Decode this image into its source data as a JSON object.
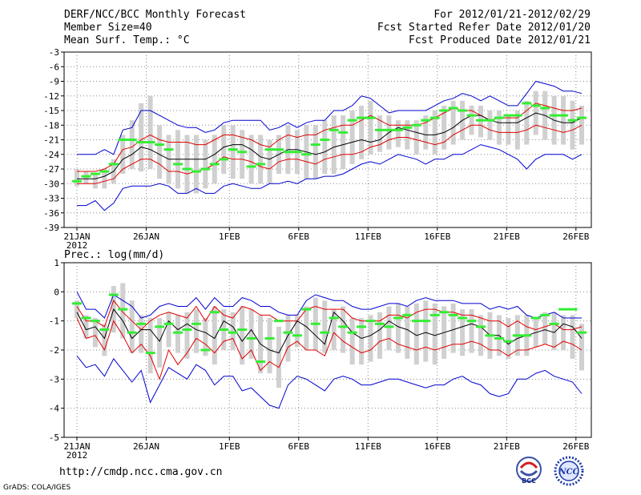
{
  "header": {
    "title": "DERF/NCC/BCC Monthly Forecast",
    "member_size": "Member Size=40",
    "variable": "Mean Surf. Temp.: °C",
    "period": "For 2012/01/21-2012/02/29",
    "fcst_started": "Fcst Started Refer Date 2012/01/20",
    "fcst_produced": "Fcst Produced Date 2012/01/21"
  },
  "footer": {
    "url": "http://cmdp.ncc.cma.gov.cn",
    "grads": "GrADS: COLA/IGES",
    "logo_bcc": "BCC",
    "logo_ncc": "NCC"
  },
  "colors": {
    "box": "#d0d0d0",
    "ensemble_mean": "#000000",
    "std_band": "#e00000",
    "envelope": "#0000d0",
    "member_mode": "#33ee33",
    "grid": "#888888"
  },
  "chart_data": [
    {
      "type": "line",
      "title": "Mean Surf. Temp.: °C",
      "xlabels": [
        "21JAN",
        "26JAN",
        "1FEB",
        "6FEB",
        "11FEB",
        "16FEB",
        "21FEB",
        "26FEB"
      ],
      "xlabel_year": "2012",
      "x_tick_days": [
        0,
        5,
        11,
        16,
        21,
        26,
        31,
        36
      ],
      "ylim": [
        -39,
        -3
      ],
      "yticks": [
        -3,
        -6,
        -9,
        -12,
        -15,
        -18,
        -21,
        -24,
        -27,
        -30,
        -33,
        -36,
        -39
      ],
      "ytick_labels": [
        "-3",
        "-6",
        "-9",
        "-12",
        "-15",
        "-18",
        "-21",
        "-24",
        "-27",
        "-30",
        "-33",
        "-36",
        "-39"
      ],
      "series": [
        {
          "name": "max",
          "values": [
            -24,
            -24,
            -24,
            -23,
            -24,
            -19,
            -18.5,
            -15,
            -15,
            -16,
            -17,
            -18,
            -18.5,
            -18.5,
            -19.5,
            -19,
            -17.5,
            -17,
            -17,
            -17,
            -17,
            -19,
            -18.5,
            -17.5,
            -18.5,
            -17.5,
            -17,
            -17,
            -15,
            -15,
            -14,
            -12,
            -12.5,
            -14,
            -15.5,
            -15,
            -15,
            -15,
            -15,
            -14,
            -13,
            -12.5,
            -11.5,
            -12,
            -13,
            -12,
            -13,
            -14,
            -14,
            -11.5,
            -9,
            -9.5,
            -10,
            -11,
            -11,
            -11.5
          ]
        },
        {
          "name": "mean_plus_std",
          "values": [
            -27.5,
            -27.5,
            -27.5,
            -27,
            -26,
            -23,
            -22.5,
            -21,
            -20,
            -21,
            -21.5,
            -21.5,
            -21.5,
            -22,
            -22,
            -21,
            -20,
            -20,
            -20.5,
            -21,
            -22,
            -22.5,
            -21,
            -20,
            -20.5,
            -20,
            -20,
            -19,
            -18.5,
            -18,
            -18,
            -17,
            -16,
            -17,
            -18,
            -18,
            -18,
            -18,
            -17.5,
            -16.5,
            -15.5,
            -14.5,
            -15,
            -15,
            -16,
            -17,
            -16.5,
            -16.5,
            -16.5,
            -15,
            -13.5,
            -14,
            -14.5,
            -15,
            -15,
            -14.5
          ]
        },
        {
          "name": "mean",
          "values": [
            -29,
            -29,
            -29,
            -28.5,
            -27.5,
            -25,
            -24,
            -22.5,
            -23,
            -24,
            -25,
            -25,
            -25,
            -25,
            -25,
            -24,
            -22.5,
            -22,
            -22,
            -23,
            -24.5,
            -25,
            -24,
            -23,
            -23,
            -23.5,
            -24,
            -23.5,
            -22.5,
            -22,
            -21.5,
            -21,
            -21.5,
            -21,
            -19.5,
            -18.5,
            -19,
            -19.5,
            -20,
            -20,
            -19.5,
            -18.5,
            -17,
            -16,
            -16,
            -17,
            -17.5,
            -17.5,
            -17.5,
            -16.5,
            -15.5,
            -16,
            -17,
            -17.5,
            -17.5,
            -16.5
          ]
        },
        {
          "name": "mean_minus_std",
          "values": [
            -30,
            -30,
            -30,
            -29.5,
            -29,
            -27,
            -26,
            -25,
            -25,
            -26,
            -27.5,
            -27.5,
            -28,
            -27.5,
            -27,
            -26,
            -24.5,
            -25,
            -25,
            -25.5,
            -26.5,
            -27,
            -25.5,
            -25,
            -25,
            -25.5,
            -26,
            -25,
            -24.5,
            -24,
            -24,
            -23.5,
            -22.5,
            -22,
            -21,
            -20.5,
            -20.5,
            -21,
            -21.5,
            -22,
            -21.5,
            -20,
            -19,
            -18,
            -18,
            -19,
            -19.5,
            -19.5,
            -19.5,
            -19,
            -18,
            -18.5,
            -19,
            -19.5,
            -19,
            -18
          ]
        },
        {
          "name": "min",
          "values": [
            -34.5,
            -34.5,
            -33.5,
            -35.5,
            -34,
            -31,
            -30.5,
            -30.5,
            -30.5,
            -30,
            -30.5,
            -32,
            -32,
            -31,
            -32,
            -32,
            -30.5,
            -30,
            -30.5,
            -31,
            -31,
            -30,
            -30,
            -29.5,
            -30,
            -29,
            -29,
            -28.5,
            -28.5,
            -28,
            -27,
            -26,
            -25.5,
            -26,
            -25,
            -24,
            -24.5,
            -25,
            -26,
            -25,
            -25,
            -24,
            -24,
            -23,
            -22,
            -22.5,
            -23,
            -24,
            -25,
            -27,
            -25,
            -24,
            -24,
            -24,
            -25,
            -24
          ]
        },
        {
          "name": "box_low",
          "values": [
            -30.5,
            -30,
            -31,
            -31,
            -30,
            -28,
            -27,
            -27.5,
            -27,
            -29,
            -30,
            -31,
            -32,
            -32,
            -31,
            -30,
            -28,
            -29,
            -29,
            -30,
            -30,
            -30,
            -28,
            -28,
            -28,
            -29,
            -29,
            -28,
            -28,
            -27,
            -26,
            -25,
            -24,
            -23.5,
            -23,
            -22.5,
            -23,
            -24,
            -23,
            -24,
            -23,
            -22,
            -21,
            -20,
            -20.5,
            -21,
            -22,
            -22,
            -23,
            -22,
            -20,
            -21,
            -22,
            -22,
            -23,
            -22
          ]
        },
        {
          "name": "box_high",
          "values": [
            -27,
            -27.5,
            -28,
            -27,
            -25,
            -20,
            -17,
            -13.5,
            -12,
            -18,
            -20,
            -19,
            -20,
            -20,
            -21,
            -20,
            -18,
            -18,
            -19,
            -20,
            -20,
            -21,
            -20,
            -18,
            -19,
            -18,
            -18,
            -17,
            -16,
            -16,
            -15,
            -14,
            -13,
            -16,
            -16,
            -17,
            -17,
            -17,
            -16,
            -15,
            -14,
            -13,
            -13,
            -14,
            -14,
            -15,
            -15,
            -16,
            -15,
            -13,
            -11,
            -11,
            -12,
            -12,
            -13,
            -14
          ]
        },
        {
          "name": "mode",
          "values": [
            -29.5,
            -28.5,
            -28,
            -27.5,
            -26,
            -21,
            -21,
            -21.5,
            -21.5,
            -22,
            -23,
            -26,
            -27,
            -27.5,
            -27,
            -26,
            -25,
            -23,
            -23.5,
            -26.5,
            -26,
            -23,
            -23,
            -23.5,
            -23.5,
            -24,
            -22,
            -21,
            -19,
            -19.5,
            -17,
            -16.5,
            -16.5,
            -19,
            -19,
            -19,
            -18.5,
            -18,
            -17,
            -16.5,
            -15,
            -14.5,
            -15,
            -16,
            -17,
            -17,
            -16.5,
            -16,
            -16,
            -13.5,
            -14,
            -14.5,
            -16,
            -16,
            -17,
            -16.5
          ]
        }
      ]
    },
    {
      "type": "line",
      "title": "Prec.: log(mm/d)",
      "xlabels": [
        "21JAN",
        "26JAN",
        "1FEB",
        "6FEB",
        "11FEB",
        "16FEB",
        "21FEB",
        "26FEB"
      ],
      "xlabel_year": "2012",
      "x_tick_days": [
        0,
        5,
        11,
        16,
        21,
        26,
        31,
        36
      ],
      "ylim": [
        -5,
        1
      ],
      "yticks": [
        1,
        0,
        -1,
        -2,
        -3,
        -4,
        -5
      ],
      "ytick_labels": [
        "1",
        "0",
        "-1",
        "-2",
        "-3",
        "-4",
        "-5"
      ],
      "series": [
        {
          "name": "max",
          "values": [
            0,
            -0.6,
            -0.6,
            -0.9,
            -0.1,
            -0.3,
            -0.5,
            -0.9,
            -0.8,
            -0.5,
            -0.4,
            -0.5,
            -0.5,
            -0.2,
            -0.6,
            -0.2,
            -0.5,
            -0.5,
            -0.2,
            -0.3,
            -0.5,
            -0.5,
            -0.7,
            -0.8,
            -0.8,
            -0.3,
            -0.1,
            -0.2,
            -0.3,
            -0.3,
            -0.5,
            -0.6,
            -0.6,
            -0.5,
            -0.4,
            -0.4,
            -0.5,
            -0.3,
            -0.2,
            -0.3,
            -0.3,
            -0.3,
            -0.4,
            -0.4,
            -0.4,
            -0.6,
            -0.5,
            -0.6,
            -0.5,
            -0.8,
            -0.9,
            -0.8,
            -0.7,
            -0.9,
            -0.9,
            -0.9
          ]
        },
        {
          "name": "mean_plus_std",
          "values": [
            -0.5,
            -1,
            -1,
            -1.2,
            -0.3,
            -0.7,
            -1,
            -1.3,
            -1,
            -0.8,
            -0.7,
            -0.8,
            -0.9,
            -0.5,
            -1,
            -0.5,
            -0.8,
            -0.9,
            -0.5,
            -0.6,
            -0.8,
            -0.8,
            -1,
            -1,
            -1,
            -0.6,
            -0.5,
            -0.6,
            -0.6,
            -0.6,
            -0.9,
            -1,
            -1,
            -1,
            -0.8,
            -0.8,
            -0.9,
            -0.7,
            -0.6,
            -0.6,
            -0.7,
            -0.7,
            -0.8,
            -0.8,
            -0.9,
            -1,
            -1,
            -1.2,
            -1,
            -1.2,
            -1.3,
            -1.2,
            -1.1,
            -1.3,
            -1.3,
            -1.2
          ]
        },
        {
          "name": "mean",
          "values": [
            -0.7,
            -1.3,
            -1.2,
            -1.6,
            -0.6,
            -1,
            -1.6,
            -1.3,
            -1.3,
            -1.7,
            -1,
            -1.3,
            -1.1,
            -1.3,
            -1.4,
            -1.6,
            -1,
            -1.2,
            -1.7,
            -1.3,
            -1.8,
            -2,
            -2.1,
            -1.5,
            -1,
            -1.2,
            -1.5,
            -1.8,
            -0.7,
            -1,
            -1.4,
            -1.6,
            -1.5,
            -1.3,
            -1,
            -1.2,
            -1.3,
            -1.5,
            -1.4,
            -1.5,
            -1.4,
            -1.3,
            -1.2,
            -1.1,
            -1.2,
            -1.5,
            -1.5,
            -1.8,
            -1.6,
            -1.5,
            -1.4,
            -1.3,
            -1.4,
            -1.1,
            -1.2,
            -1.6
          ]
        },
        {
          "name": "mean_minus_std",
          "values": [
            -0.9,
            -1.6,
            -1.5,
            -2,
            -1,
            -1.5,
            -2.1,
            -1.8,
            -2.2,
            -3,
            -2,
            -2.5,
            -2.1,
            -1.6,
            -1.8,
            -2.1,
            -1.7,
            -1.6,
            -2.3,
            -2,
            -2.7,
            -2.4,
            -2.6,
            -1.9,
            -1.7,
            -2,
            -2,
            -2.2,
            -1.4,
            -1.7,
            -1.9,
            -2.1,
            -2,
            -1.7,
            -1.6,
            -1.8,
            -1.9,
            -2,
            -1.9,
            -2,
            -1.9,
            -1.8,
            -1.8,
            -1.7,
            -1.8,
            -2,
            -2,
            -2.2,
            -2,
            -2,
            -1.9,
            -1.8,
            -1.9,
            -1.7,
            -1.8,
            -2
          ]
        },
        {
          "name": "min",
          "values": [
            -2.2,
            -2.6,
            -2.5,
            -2.9,
            -2.3,
            -2.7,
            -3.1,
            -2.7,
            -3.8,
            -3.2,
            -2.6,
            -2.8,
            -3,
            -2.5,
            -2.7,
            -3.2,
            -2.9,
            -2.9,
            -3.4,
            -3.3,
            -3.6,
            -3.9,
            -4,
            -3.2,
            -2.9,
            -3,
            -3.2,
            -3.4,
            -3,
            -2.9,
            -3,
            -3.2,
            -3.2,
            -3.1,
            -3,
            -3,
            -3.1,
            -3.2,
            -3.3,
            -3.2,
            -3.2,
            -3,
            -2.9,
            -3.1,
            -3.2,
            -3.5,
            -3.6,
            -3.5,
            -3,
            -3,
            -2.8,
            -2.7,
            -2.9,
            -3,
            -3.1,
            -3.5
          ]
        },
        {
          "name": "box_low",
          "values": [
            -0.9,
            -1.6,
            -1.9,
            -2.2,
            -1.4,
            -1.6,
            -2.1,
            -2.1,
            -2.8,
            -2.6,
            -1.9,
            -2.1,
            -2.3,
            -2.1,
            -2.2,
            -2.5,
            -2,
            -2,
            -2.5,
            -2.3,
            -2.8,
            -2.8,
            -3.3,
            -2.4,
            -1.9,
            -2,
            -2,
            -2.1,
            -2,
            -2.1,
            -2.5,
            -2.5,
            -2.4,
            -2.3,
            -2,
            -2.1,
            -2.3,
            -2.5,
            -2.4,
            -2.5,
            -2.3,
            -2.1,
            -2.2,
            -2.1,
            -2.2,
            -2.3,
            -2.2,
            -2.3,
            -2.2,
            -2.2,
            -1.9,
            -1.8,
            -2,
            -2,
            -2.3,
            -2.7
          ]
        },
        {
          "name": "box_high",
          "values": [
            -0.3,
            -0.8,
            -0.9,
            -1.1,
            0.2,
            0.3,
            -0.3,
            -0.8,
            -0.9,
            -0.9,
            -0.7,
            -0.8,
            -0.7,
            -0.6,
            -0.9,
            -0.5,
            -0.6,
            -0.7,
            -0.5,
            -0.6,
            -0.8,
            -0.9,
            -1.2,
            -0.8,
            -0.8,
            -0.5,
            -0.2,
            -0.3,
            -0.6,
            -0.5,
            -0.9,
            -0.9,
            -0.8,
            -0.7,
            -0.5,
            -0.4,
            -0.5,
            -0.4,
            -0.3,
            -0.4,
            -0.5,
            -0.4,
            -0.6,
            -0.6,
            -0.8,
            -0.7,
            -0.8,
            -0.9,
            -0.8,
            -0.8,
            -0.9,
            -0.7,
            -0.7,
            -0.8,
            -0.8,
            -1.1
          ]
        },
        {
          "name": "mode",
          "values": [
            -0.4,
            -0.9,
            -1,
            -1.3,
            -0.1,
            -0.6,
            -1.4,
            -1.1,
            -2.1,
            -1.2,
            -1.1,
            -1.4,
            -1.3,
            -1.1,
            -2,
            -0.7,
            -1.3,
            -1.4,
            -1.3,
            -1.6,
            -2.4,
            -1.6,
            -1,
            -1.4,
            -1.5,
            -0.6,
            -1.1,
            -1.4,
            -0.9,
            -1.2,
            -1.4,
            -1.2,
            -1,
            -1.1,
            -1.2,
            -0.9,
            -0.8,
            -1,
            -1,
            -0.8,
            -0.7,
            -0.8,
            -0.9,
            -1,
            -1.2,
            -1.5,
            -1.6,
            -1.7,
            -1.5,
            -1.5,
            -0.9,
            -0.8,
            -1.1,
            -0.6,
            -0.6,
            -1.4
          ]
        }
      ]
    }
  ]
}
